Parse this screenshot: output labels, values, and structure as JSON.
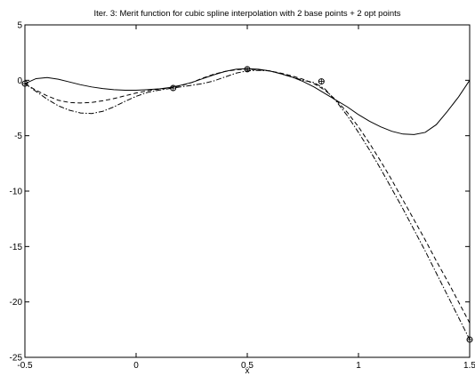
{
  "chart_data": {
    "type": "line",
    "title": "Iter. 3: Merit function for cubic spline interpolation with 2 base points + 2 opt points",
    "xlabel": "x",
    "ylabel": "",
    "xlim": [
      -0.5,
      1.5
    ],
    "ylim": [
      -25,
      5
    ],
    "grid": false,
    "legend": "none",
    "x_ticks": [
      "-0.5",
      "0",
      "0.5",
      "1",
      "1.5"
    ],
    "x_tick_values": [
      -0.5,
      0,
      0.5,
      1,
      1.5
    ],
    "y_ticks": [
      "5",
      "0",
      "-5",
      "-10",
      "-15",
      "-20",
      "-25"
    ],
    "y_tick_values": [
      5,
      0,
      -5,
      -10,
      -15,
      -20,
      -25
    ],
    "series": [
      {
        "style": "solid",
        "color": "#000000",
        "x": [
          -0.5,
          -0.45,
          -0.4,
          -0.35,
          -0.3,
          -0.25,
          -0.2,
          -0.15,
          -0.1,
          -0.05,
          0,
          0.05,
          0.1,
          0.15,
          0.2,
          0.25,
          0.3,
          0.35,
          0.4,
          0.45,
          0.5,
          0.55,
          0.6,
          0.65,
          0.7,
          0.75,
          0.8,
          0.85,
          0.9,
          0.95,
          1,
          1.05,
          1.1,
          1.15,
          1.2,
          1.25,
          1.3,
          1.35,
          1.4,
          1.45,
          1.5
        ],
        "y": [
          -0.3,
          0.15,
          0.25,
          0.1,
          -0.15,
          -0.4,
          -0.6,
          -0.75,
          -0.85,
          -0.9,
          -0.9,
          -0.85,
          -0.78,
          -0.65,
          -0.45,
          -0.2,
          0.15,
          0.5,
          0.8,
          1.0,
          1.05,
          1.0,
          0.85,
          0.6,
          0.3,
          -0.1,
          -0.6,
          -1.2,
          -1.8,
          -2.4,
          -3.1,
          -3.7,
          -4.2,
          -4.6,
          -4.85,
          -4.9,
          -4.7,
          -4.0,
          -2.8,
          -1.5,
          0.0
        ]
      },
      {
        "style": "dashed",
        "color": "#000000",
        "x": [
          -0.5,
          -0.45,
          -0.4,
          -0.35,
          -0.3,
          -0.25,
          -0.2,
          -0.15,
          -0.1,
          -0.05,
          0,
          0.05,
          0.1,
          0.15,
          0.2,
          0.25,
          0.3,
          0.35,
          0.4,
          0.45,
          0.5,
          0.55,
          0.6,
          0.65,
          0.7,
          0.75,
          0.8,
          0.85,
          0.9,
          0.95,
          1,
          1.05,
          1.1,
          1.15,
          1.2,
          1.25,
          1.3,
          1.35,
          1.4,
          1.45,
          1.5
        ],
        "y": [
          -0.3,
          -0.9,
          -1.4,
          -1.8,
          -2.0,
          -2.05,
          -2.0,
          -1.85,
          -1.65,
          -1.4,
          -1.15,
          -0.95,
          -0.8,
          -0.7,
          -0.5,
          -0.2,
          0.2,
          0.55,
          0.8,
          0.95,
          1.0,
          0.95,
          0.85,
          0.65,
          0.4,
          0.1,
          -0.3,
          -0.9,
          -1.8,
          -2.9,
          -4.2,
          -5.7,
          -7.3,
          -9.0,
          -10.8,
          -12.6,
          -14.4,
          -16.3,
          -18.1,
          -20.0,
          -21.9
        ]
      },
      {
        "style": "dashdot",
        "color": "#000000",
        "x": [
          -0.5,
          -0.45,
          -0.4,
          -0.35,
          -0.3,
          -0.25,
          -0.2,
          -0.15,
          -0.1,
          -0.05,
          0,
          0.05,
          0.1,
          0.15,
          0.2,
          0.25,
          0.3,
          0.35,
          0.4,
          0.45,
          0.5,
          0.55,
          0.6,
          0.65,
          0.7,
          0.75,
          0.8,
          0.85,
          0.9,
          0.95,
          1,
          1.05,
          1.1,
          1.15,
          1.2,
          1.25,
          1.3,
          1.35,
          1.4,
          1.45,
          1.5
        ],
        "y": [
          -0.3,
          -1.0,
          -1.7,
          -2.3,
          -2.7,
          -2.95,
          -3.0,
          -2.8,
          -2.4,
          -1.9,
          -1.45,
          -1.1,
          -0.9,
          -0.75,
          -0.6,
          -0.45,
          -0.3,
          -0.05,
          0.3,
          0.65,
          0.85,
          0.9,
          0.85,
          0.6,
          0.3,
          0.0,
          -0.2,
          -0.8,
          -1.9,
          -3.2,
          -4.7,
          -6.3,
          -8.0,
          -9.8,
          -11.6,
          -13.5,
          -15.4,
          -17.4,
          -19.4,
          -21.4,
          -23.4
        ]
      }
    ],
    "markers": [
      {
        "x": -0.5,
        "y": -0.3
      },
      {
        "x": 0.1667,
        "y": -0.7
      },
      {
        "x": 0.5,
        "y": 1.0
      },
      {
        "x": 0.8333,
        "y": -0.1
      },
      {
        "x": 1.5,
        "y": -23.4
      }
    ]
  }
}
